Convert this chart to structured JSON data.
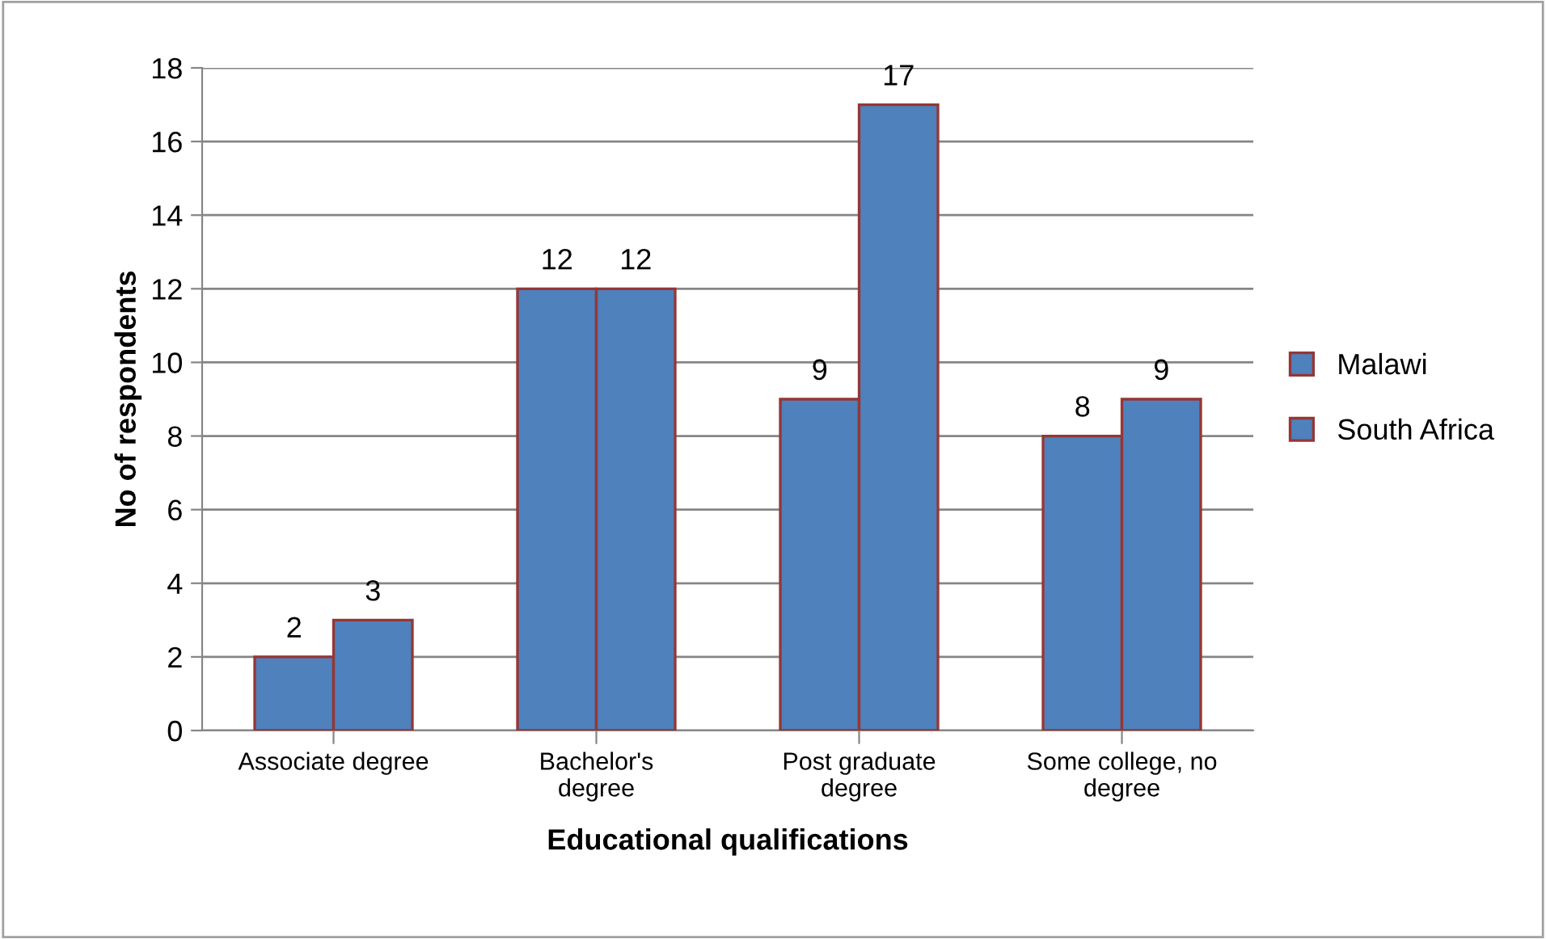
{
  "chart_data": {
    "type": "bar",
    "xlabel": "Educational qualifications",
    "ylabel": "No of respondents",
    "categories": [
      "Associate degree",
      "Bachelor's\ndegree",
      "Post graduate\ndegree",
      "Some college, no\ndegree"
    ],
    "series": [
      {
        "name": "Malawi",
        "color": "#4f81bd",
        "values": [
          2,
          12,
          9,
          8
        ]
      },
      {
        "name": "South Africa",
        "color": "#4f81bd",
        "values": [
          3,
          12,
          17,
          9
        ]
      }
    ],
    "ylim": [
      0,
      18
    ],
    "yticks": [
      0,
      2,
      4,
      6,
      8,
      10,
      12,
      14,
      16,
      18
    ],
    "grid": "y",
    "legend": "right",
    "data_labels": true
  }
}
